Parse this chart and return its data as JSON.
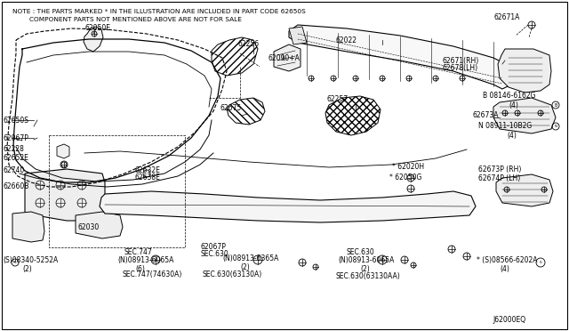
{
  "bg_color": "#ffffff",
  "line_color": "#000000",
  "text_color": "#000000",
  "fig_width": 6.4,
  "fig_height": 3.72,
  "dpi": 100,
  "note_line1": "NOTE : THE PARTS MARKED * IN THE ILLUSTRATION ARE INCLUDED IN PART CODE 62650S",
  "note_line2": "        COMPONENT PARTS NOT MENTIONED ABOVE ARE NOT FOR SALE",
  "diagram_code": "J62000EQ"
}
